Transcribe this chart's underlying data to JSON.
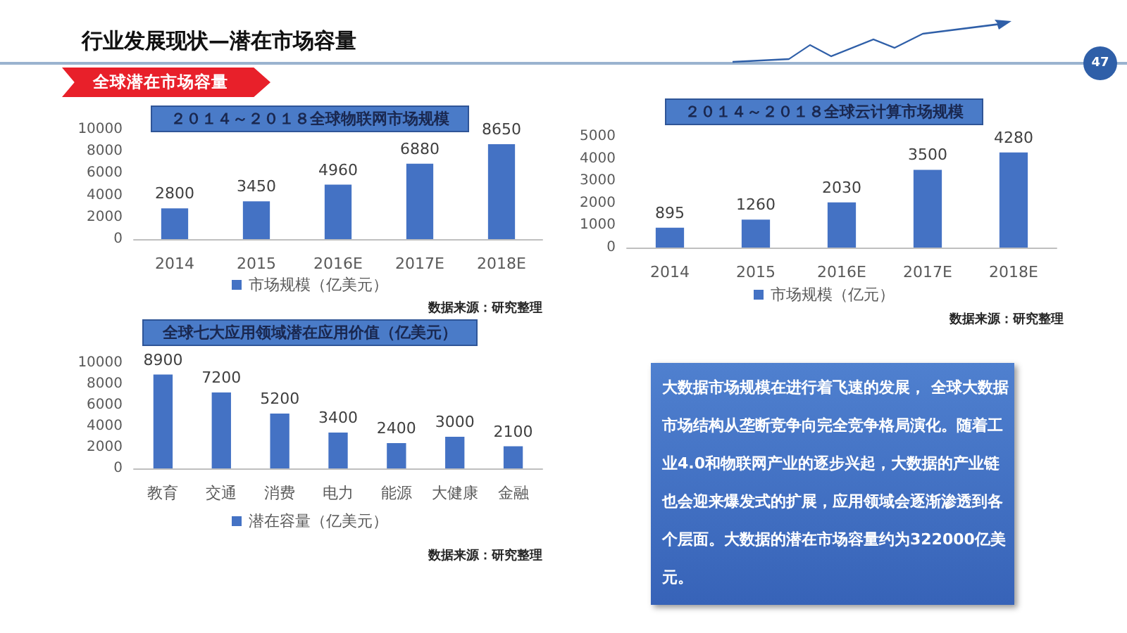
{
  "chart_data": [
    {
      "type": "bar",
      "title": "２０１４～２０１８全球物联网市场规模",
      "categories": [
        "2014",
        "2015",
        "2016E",
        "2017E",
        "2018E"
      ],
      "series": [
        {
          "name": "市场规模（亿美元）",
          "color": "#4472c4",
          "values": [
            2800,
            3450,
            4960,
            6880,
            8650
          ]
        }
      ],
      "ylim": [
        0,
        10000
      ],
      "yticks": [
        0,
        2000,
        4000,
        6000,
        8000,
        10000
      ],
      "grid": false,
      "legend": "bottom",
      "data_labels": true,
      "annotations": [
        "数据来源：研究整理"
      ]
    },
    {
      "type": "bar",
      "title": "２０１４～２０１８全球云计算市场规模",
      "categories": [
        "2014",
        "2015",
        "2016E",
        "2017E",
        "2018E"
      ],
      "series": [
        {
          "name": "市场规模（亿元）",
          "color": "#4472c4",
          "values": [
            895,
            1260,
            2030,
            3500,
            4280
          ]
        }
      ],
      "ylim": [
        0,
        5000
      ],
      "yticks": [
        0,
        1000,
        2000,
        3000,
        4000,
        5000
      ],
      "grid": false,
      "legend": "bottom",
      "data_labels": true,
      "annotations": [
        "数据来源：研究整理"
      ]
    },
    {
      "type": "bar",
      "title": "全球七大应用领域潜在应用价值（亿美元）",
      "categories": [
        "教育",
        "交通",
        "消费",
        "电力",
        "能源",
        "大健康",
        "金融"
      ],
      "series": [
        {
          "name": "潜在容量（亿美元）",
          "color": "#4472c4",
          "values": [
            8900,
            7200,
            5200,
            3400,
            2400,
            3000,
            2100
          ]
        }
      ],
      "ylim": [
        0,
        10000
      ],
      "yticks": [
        0,
        2000,
        4000,
        6000,
        8000,
        10000
      ],
      "grid": false,
      "legend": "bottom",
      "data_labels": true,
      "annotations": [
        "数据来源：研究整理"
      ]
    },
    {
      "type": "other",
      "title": "行业发展现状—潜在市场容量",
      "subtitle": "全球潜在市场容量",
      "annotations": [
        "大数据市场规模在进行着飞速的发展， 全球大数据市场结构从垄断竞争向完全竞争格局演化。随着工业4.0和物联网产业的逐步兴起，大数据的产业链也会迎来爆发式的扩展，应用领域会逐渐渗透到各个层面。大数据的潜在市场容量约为322000亿美元。",
        "47"
      ]
    }
  ]
}
